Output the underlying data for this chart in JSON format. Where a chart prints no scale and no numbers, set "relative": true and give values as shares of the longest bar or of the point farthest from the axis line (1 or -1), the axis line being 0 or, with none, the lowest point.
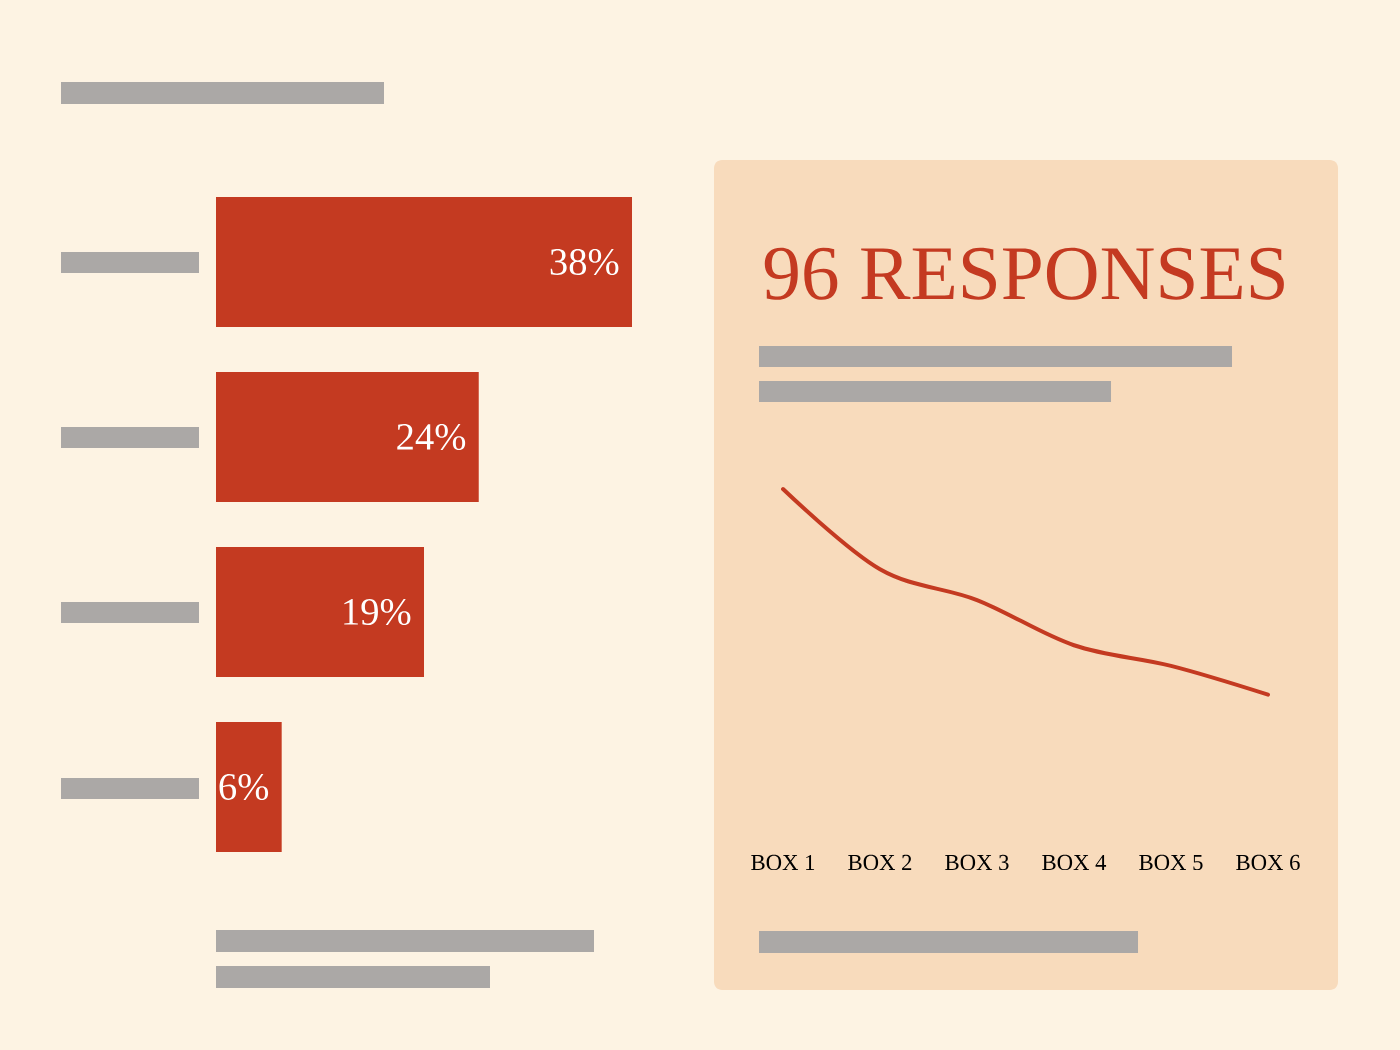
{
  "chart_data": [
    {
      "type": "bar",
      "orientation": "horizontal",
      "categories": [
        null,
        null,
        null,
        null
      ],
      "values": [
        38,
        24,
        19,
        6
      ],
      "value_labels": [
        "38%",
        "24%",
        "19%",
        "6%"
      ],
      "color": "#c43a21",
      "xlim": [
        0,
        38
      ]
    },
    {
      "type": "line",
      "title": "96 RESPONSES",
      "categories": [
        "BOX 1",
        "BOX 2",
        "BOX 3",
        "BOX 4",
        "BOX 5",
        "BOX 6"
      ],
      "values": [
        1,
        0.61,
        0.46,
        0.24,
        0.14,
        0
      ],
      "color": "#c43a21",
      "relative": true
    }
  ]
}
